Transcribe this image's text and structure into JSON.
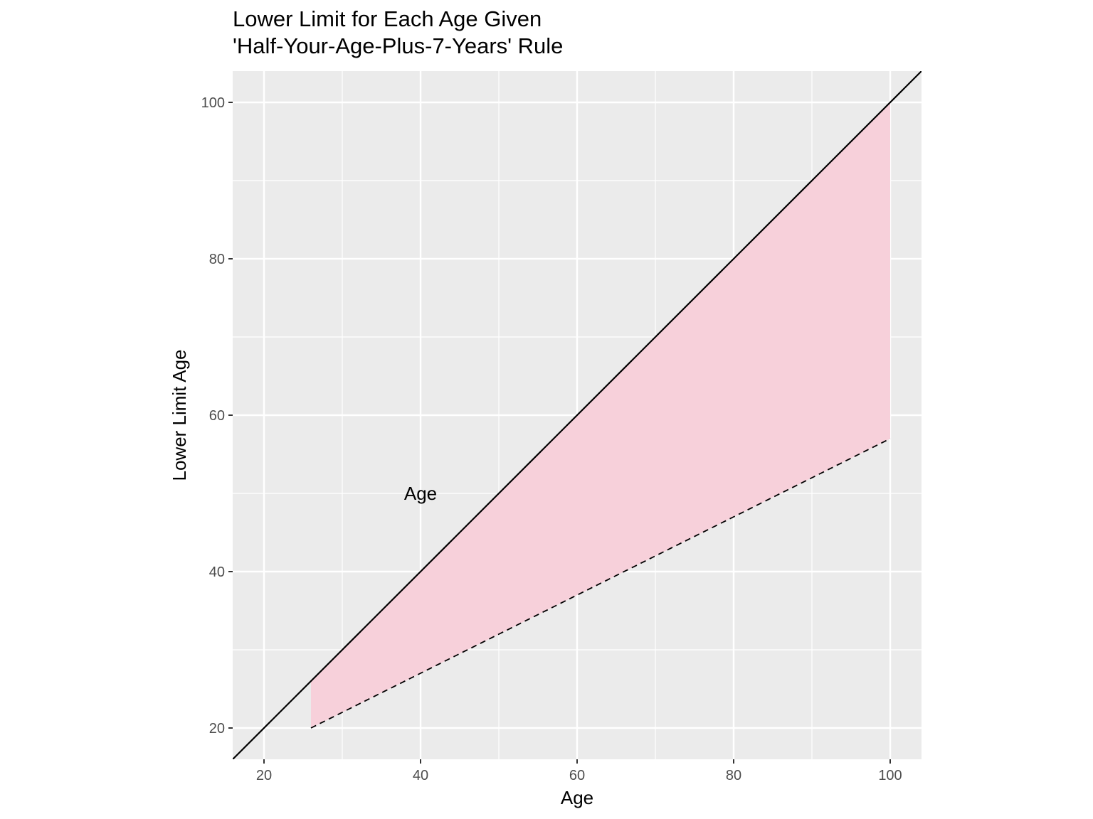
{
  "chart_data": {
    "type": "line",
    "title_lines": [
      "Lower Limit for Each Age Given",
      "'Half-Your-Age-Plus-7-Years' Rule"
    ],
    "xlabel": "Age",
    "ylabel": "Lower Limit Age",
    "xlim": [
      16,
      104
    ],
    "ylim": [
      16,
      104
    ],
    "x_ticks": [
      20,
      40,
      60,
      80,
      100
    ],
    "y_ticks": [
      20,
      40,
      60,
      80,
      100
    ],
    "x_minor": [
      30,
      50,
      70,
      90
    ],
    "y_minor": [
      30,
      50,
      70,
      90
    ],
    "grid": true,
    "series": [
      {
        "line_style": "solid",
        "x": [
          16,
          104
        ],
        "y": [
          16,
          104
        ]
      },
      {
        "line_style": "dashed",
        "x": [
          26,
          30,
          40,
          50,
          60,
          70,
          80,
          90,
          100
        ],
        "y": [
          20,
          22,
          27,
          32,
          37,
          42,
          47,
          52,
          57
        ]
      }
    ],
    "ribbon": {
      "x_start": 26,
      "x_end": 100,
      "upper": "y = x",
      "lower": "y = x/2 + 7",
      "color": "#f7d0da"
    },
    "annotations": [
      {
        "text": "Age",
        "x": 40,
        "y": 50
      }
    ],
    "colors": {
      "panel_bg": "#ebebeb",
      "grid": "#ffffff",
      "line": "#000000",
      "ribbon": "#f7d0da"
    }
  }
}
